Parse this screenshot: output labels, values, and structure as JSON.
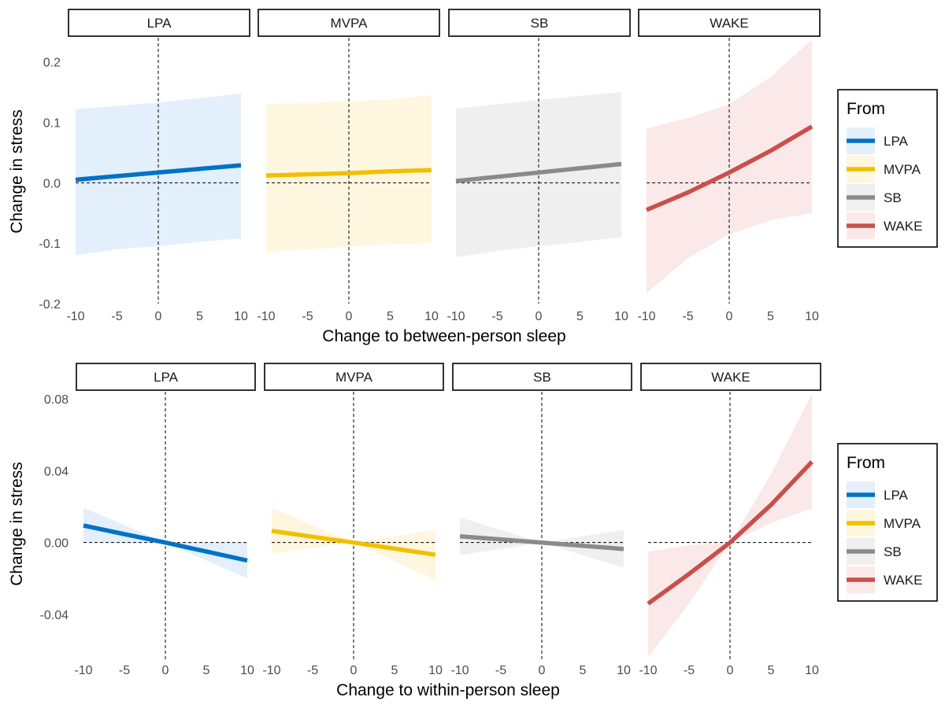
{
  "chart_data": [
    {
      "type": "line",
      "panel_variable": "From",
      "ylabel": "Change in stress",
      "xlabel": "Change to between-person sleep",
      "xlim": [
        -10,
        10
      ],
      "ylim": [
        -0.2,
        0.24
      ],
      "x_ticks": [
        -10,
        -5,
        0,
        5,
        10
      ],
      "x_tick_labels": [
        "-10",
        "-5",
        "0",
        "5",
        "10"
      ],
      "y_ticks": [
        -0.2,
        -0.1,
        0.0,
        0.1,
        0.2
      ],
      "y_tick_labels": [
        "-0.2",
        "-0.1",
        "0.0",
        "0.1",
        "0.2"
      ],
      "reference_lines": {
        "x": 0,
        "y": 0,
        "style": "dashed"
      },
      "legend": {
        "title": "From",
        "position": "right",
        "entries": [
          "LPA",
          "MVPA",
          "SB",
          "WAKE"
        ]
      },
      "series": [
        {
          "name": "LPA",
          "color": "#0072c6",
          "fill": "#e3effa",
          "x": [
            -10,
            -5,
            0,
            5,
            10
          ],
          "y": [
            0.005,
            0.011,
            0.017,
            0.023,
            0.029
          ],
          "lower": [
            -0.12,
            -0.11,
            -0.105,
            -0.098,
            -0.092
          ],
          "upper": [
            0.122,
            0.127,
            0.133,
            0.14,
            0.148
          ]
        },
        {
          "name": "MVPA",
          "color": "#f0c000",
          "fill": "#fff6e0",
          "x": [
            -10,
            -5,
            0,
            5,
            10
          ],
          "y": [
            0.012,
            0.014,
            0.016,
            0.019,
            0.021
          ],
          "lower": [
            -0.115,
            -0.11,
            -0.106,
            -0.102,
            -0.1
          ],
          "upper": [
            0.13,
            0.132,
            0.134,
            0.138,
            0.145
          ]
        },
        {
          "name": "SB",
          "color": "#8a8a8a",
          "fill": "#efefef",
          "x": [
            -10,
            -5,
            0,
            5,
            10
          ],
          "y": [
            0.003,
            0.01,
            0.017,
            0.024,
            0.031
          ],
          "lower": [
            -0.123,
            -0.113,
            -0.105,
            -0.098,
            -0.09
          ],
          "upper": [
            0.123,
            0.13,
            0.137,
            0.144,
            0.15
          ]
        },
        {
          "name": "WAKE",
          "color": "#c9504a",
          "fill": "#fae9e8",
          "x": [
            -10,
            -5,
            0,
            5,
            10
          ],
          "y": [
            -0.045,
            -0.016,
            0.017,
            0.053,
            0.093
          ],
          "lower": [
            -0.182,
            -0.125,
            -0.085,
            -0.062,
            -0.05
          ],
          "upper": [
            0.09,
            0.107,
            0.13,
            0.175,
            0.237
          ]
        }
      ]
    },
    {
      "type": "line",
      "panel_variable": "From",
      "ylabel": "Change in stress",
      "xlabel": "Change to within-person sleep",
      "xlim": [
        -10,
        10
      ],
      "ylim": [
        -0.065,
        0.084
      ],
      "x_ticks": [
        -10,
        -5,
        0,
        5,
        10
      ],
      "x_tick_labels": [
        "-10",
        "-5",
        "0",
        "5",
        "10"
      ],
      "y_ticks": [
        -0.04,
        0.0,
        0.04,
        0.08
      ],
      "y_tick_labels": [
        "-0.04",
        "0.00",
        "0.04",
        "0.08"
      ],
      "reference_lines": {
        "x": 0,
        "y": 0,
        "style": "dashed"
      },
      "legend": {
        "title": "From",
        "position": "right",
        "entries": [
          "LPA",
          "MVPA",
          "SB",
          "WAKE"
        ]
      },
      "series": [
        {
          "name": "LPA",
          "color": "#0072c6",
          "fill": "#e3effa",
          "x": [
            -10,
            -5,
            0,
            5,
            10
          ],
          "y": [
            0.0095,
            0.0047,
            0.0,
            -0.005,
            -0.01
          ],
          "lower": [
            0.0,
            -0.0003,
            0.0,
            -0.01,
            -0.02
          ],
          "upper": [
            0.0195,
            0.0097,
            0.0,
            0.0,
            0.0
          ]
        },
        {
          "name": "MVPA",
          "color": "#f0c000",
          "fill": "#fff6e0",
          "x": [
            -10,
            -5,
            0,
            5,
            10
          ],
          "y": [
            0.0065,
            0.0032,
            0.0,
            -0.0034,
            -0.0068
          ],
          "lower": [
            -0.006,
            -0.003,
            0.0,
            -0.0105,
            -0.021
          ],
          "upper": [
            0.0195,
            0.0097,
            0.0,
            0.0035,
            0.007
          ]
        },
        {
          "name": "SB",
          "color": "#8a8a8a",
          "fill": "#efefef",
          "x": [
            -10,
            -5,
            0,
            5,
            10
          ],
          "y": [
            0.0035,
            0.0017,
            0.0,
            -0.0018,
            -0.0036
          ],
          "lower": [
            -0.007,
            -0.0035,
            0.0,
            -0.007,
            -0.014
          ],
          "upper": [
            0.014,
            0.007,
            0.0,
            0.0035,
            0.007
          ]
        },
        {
          "name": "WAKE",
          "color": "#c9504a",
          "fill": "#fae9e8",
          "x": [
            -10,
            -5,
            0,
            5,
            10
          ],
          "y": [
            -0.034,
            -0.0175,
            0.0,
            0.021,
            0.045
          ],
          "lower": [
            -0.064,
            -0.034,
            0.0,
            0.011,
            0.019
          ],
          "upper": [
            -0.005,
            -0.0015,
            0.0,
            0.038,
            0.083
          ]
        }
      ]
    }
  ]
}
